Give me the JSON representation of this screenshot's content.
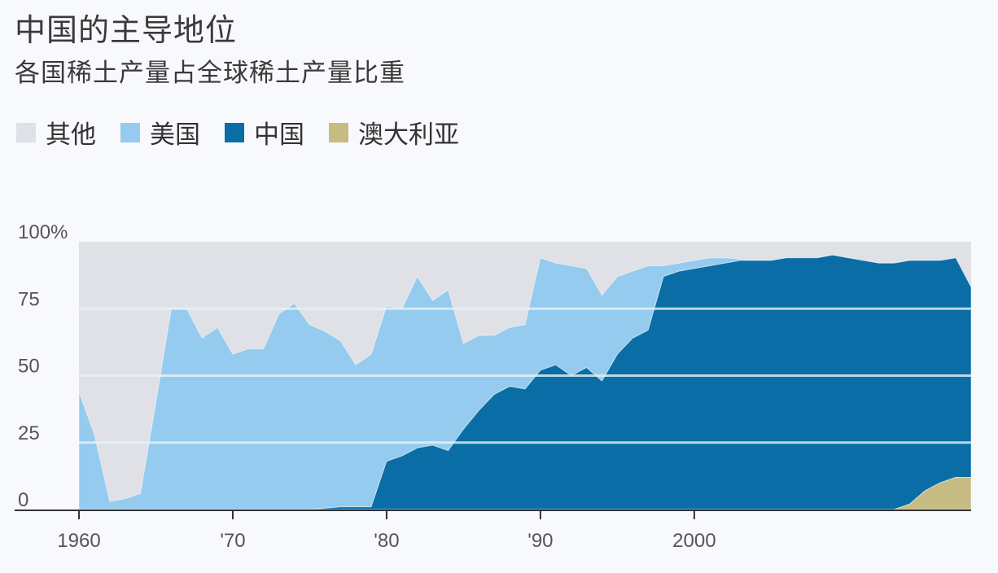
{
  "title": "中国的主导地位",
  "subtitle": "各国稀土产量占全球稀土产量比重",
  "legend": [
    {
      "label": "其他",
      "color": "#dfe1e6"
    },
    {
      "label": "美国",
      "color": "#94cbee"
    },
    {
      "label": "中国",
      "color": "#0a6da6"
    },
    {
      "label": "澳大利亚",
      "color": "#c7bb84"
    }
  ],
  "chart_data": {
    "type": "area",
    "stacked": true,
    "xlim": [
      1960,
      2018
    ],
    "ylim": [
      0,
      100
    ],
    "x_ticks": [
      {
        "value": 1960,
        "label": "1960"
      },
      {
        "value": 1970,
        "label": "'70"
      },
      {
        "value": 1980,
        "label": "'80"
      },
      {
        "value": 1990,
        "label": "'90"
      },
      {
        "value": 2000,
        "label": "2000"
      }
    ],
    "y_ticks": [
      {
        "value": 0,
        "label": "0"
      },
      {
        "value": 25,
        "label": "25"
      },
      {
        "value": 50,
        "label": "50"
      },
      {
        "value": 75,
        "label": "75"
      },
      {
        "value": 100,
        "label": "100%"
      }
    ],
    "x": [
      1960,
      1961,
      1962,
      1963,
      1964,
      1965,
      1966,
      1967,
      1968,
      1969,
      1970,
      1971,
      1972,
      1973,
      1974,
      1975,
      1976,
      1977,
      1978,
      1979,
      1980,
      1981,
      1982,
      1983,
      1984,
      1985,
      1986,
      1987,
      1988,
      1989,
      1990,
      1991,
      1992,
      1993,
      1994,
      1995,
      1996,
      1997,
      1998,
      1999,
      2000,
      2001,
      2002,
      2003,
      2004,
      2005,
      2006,
      2007,
      2008,
      2009,
      2010,
      2011,
      2012,
      2013,
      2014,
      2015,
      2016,
      2017,
      2018
    ],
    "series": [
      {
        "name": "澳大利亚",
        "color": "#c7bb84",
        "values": [
          0,
          0,
          0,
          0,
          0,
          0,
          0,
          0,
          0,
          0,
          0,
          0,
          0,
          0,
          0,
          0,
          0,
          0,
          0,
          0,
          0,
          0,
          0,
          0,
          0,
          0,
          0,
          0,
          0,
          0,
          0,
          0,
          0,
          0,
          0,
          0,
          0,
          0,
          0,
          0,
          0,
          0,
          0,
          0,
          0,
          0,
          0,
          0,
          0,
          0,
          0,
          0,
          0,
          0,
          2,
          7,
          10,
          12,
          12
        ]
      },
      {
        "name": "中国",
        "color": "#0a6da6",
        "values": [
          0,
          0,
          0,
          0,
          0,
          0,
          0,
          0,
          0,
          0,
          0,
          0,
          0,
          0,
          0,
          0,
          0.5,
          1,
          1,
          1,
          18,
          20,
          23,
          24,
          22,
          30,
          37,
          43,
          46,
          45,
          52,
          54,
          50,
          53,
          48,
          58,
          64,
          67,
          87,
          89,
          90,
          91,
          92,
          93,
          93,
          93,
          94,
          94,
          94,
          95,
          94,
          93,
          92,
          92,
          91,
          86,
          83,
          82,
          71
        ]
      },
      {
        "name": "美国",
        "color": "#94cbee",
        "values": [
          44,
          28,
          3,
          4,
          6,
          40,
          75,
          75,
          64,
          68,
          58,
          60,
          60,
          73,
          77,
          69,
          66,
          62,
          53,
          57,
          58,
          55,
          64,
          54,
          60,
          32,
          28,
          22,
          22,
          24,
          42,
          38,
          41,
          37,
          32,
          29,
          25,
          24,
          4,
          3,
          3,
          3,
          2,
          0.5,
          0,
          0,
          0,
          0,
          0,
          0,
          0,
          0,
          0,
          0,
          0,
          0,
          0,
          0,
          0
        ]
      }
    ]
  }
}
